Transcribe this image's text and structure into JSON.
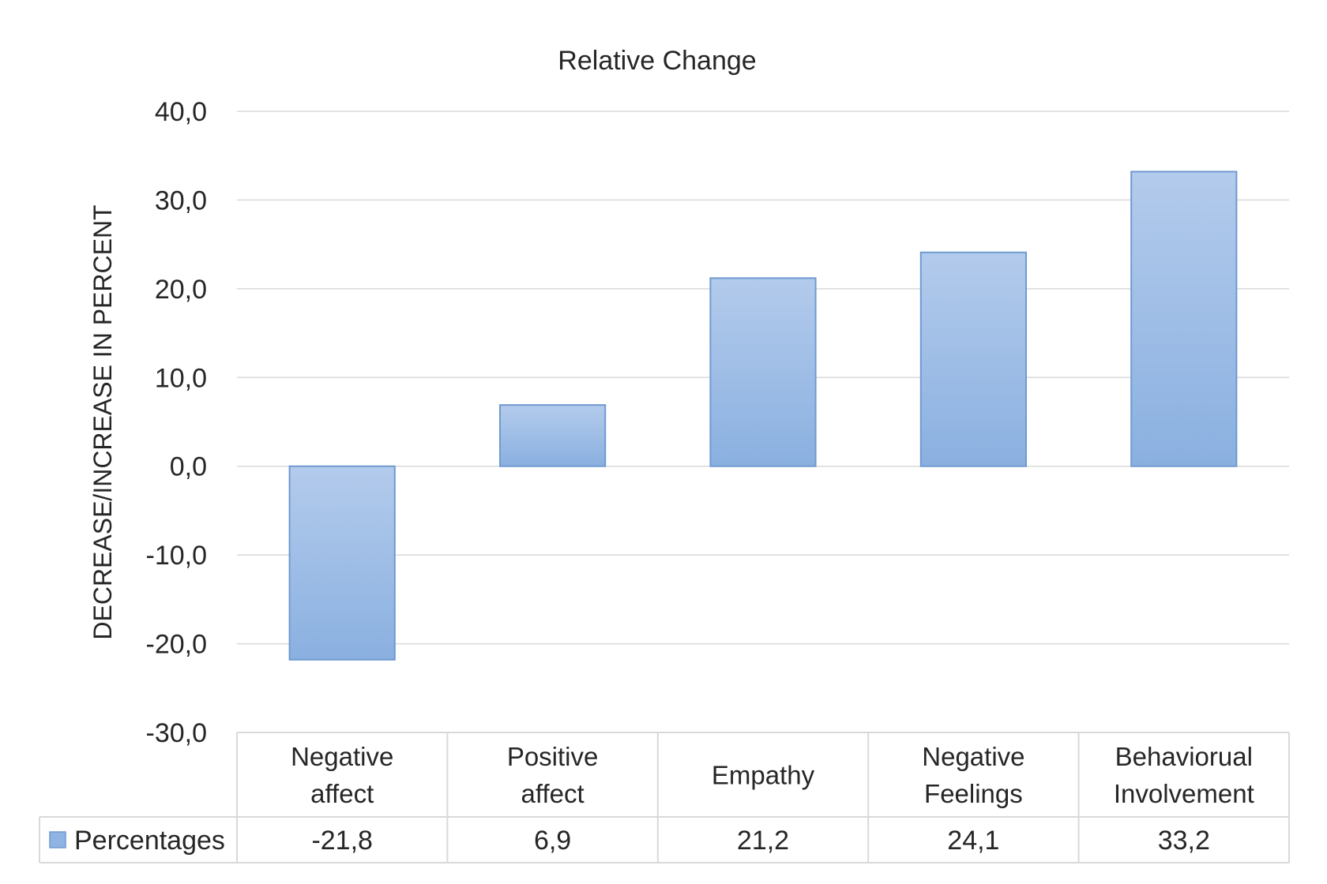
{
  "chart_data": {
    "type": "bar",
    "title": "Relative Change",
    "xlabel": "",
    "ylabel": "DECREASE/INCREASE IN PERCENT",
    "ylim": [
      -30,
      40
    ],
    "yticks": [
      40,
      30,
      20,
      10,
      0,
      -10,
      -20,
      -30
    ],
    "ytick_labels": [
      "40,0",
      "30,0",
      "20,0",
      "10,0",
      "0,0",
      "-10,0",
      "-20,0",
      "-30,0"
    ],
    "grid": true,
    "legend": "data-table",
    "categories": [
      [
        "Negative",
        "affect"
      ],
      [
        "Positive",
        "affect"
      ],
      [
        "Empathy"
      ],
      [
        "Negative",
        "Feelings"
      ],
      [
        "Behaviorual",
        "Involvement"
      ]
    ],
    "series": [
      {
        "name": "Percentages",
        "values": [
          -21.8,
          6.9,
          21.2,
          24.1,
          33.2
        ],
        "value_labels": [
          "-21,8",
          "6,9",
          "21,2",
          "24,1",
          "33,2"
        ],
        "color": "#8fb4e3"
      }
    ]
  }
}
